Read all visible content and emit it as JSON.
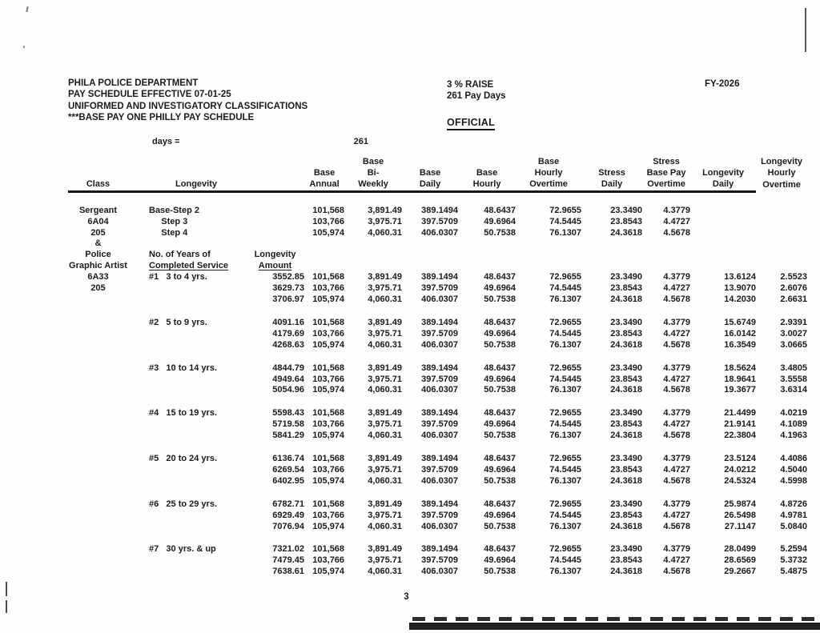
{
  "page": {
    "title_lines": [
      "PHILA POLICE DEPARTMENT",
      "PAY SCHEDULE EFFECTIVE 07-01-25",
      "UNIFORMED AND INVESTIGATORY CLASSIFICATIONS",
      "***BASE PAY ONE PHILLY PAY SCHEDULE"
    ],
    "raise_note": "3 % RAISE",
    "pay_days_note": "261 Pay Days",
    "official_label": "OFFICIAL",
    "fiscal_year": "FY-2026",
    "days_label": "days =",
    "days_value": "261",
    "page_number": "3"
  },
  "table": {
    "column_headers": [
      [
        "",
        "",
        "Class"
      ],
      [
        "",
        "",
        "Longevity"
      ],
      [
        "",
        "",
        ""
      ],
      [
        "",
        "Base",
        "Annual"
      ],
      [
        "Base",
        "Bi-",
        "Weekly"
      ],
      [
        "",
        "Base",
        "Daily"
      ],
      [
        "",
        "Base",
        "Hourly"
      ],
      [
        "Base",
        "Hourly",
        "Overtime"
      ],
      [
        "",
        "Stress",
        "Daily"
      ],
      [
        "Stress",
        "Base Pay",
        "Overtime"
      ],
      [
        "",
        "Longevity",
        "Daily"
      ],
      [
        "Longevity",
        "Hourly",
        "Overtime"
      ]
    ],
    "rows": [
      {
        "cells": [
          "Sergeant",
          "Base-Step 2",
          "",
          "101,568",
          "3,891.49",
          "389.1494",
          "48.6437",
          "72.9655",
          "23.3490",
          "4.3779",
          "",
          ""
        ]
      },
      {
        "cells": [
          "6A04",
          "     Step 3",
          "",
          "103,766",
          "3,975.71",
          "397.5709",
          "49.6964",
          "74.5445",
          "23.8543",
          "4.4727",
          "",
          ""
        ]
      },
      {
        "cells": [
          "205",
          "     Step 4",
          "",
          "105,974",
          "4,060.31",
          "406.0307",
          "50.7538",
          "76.1307",
          "24.3618",
          "4.5678",
          "",
          ""
        ]
      },
      {
        "cells": [
          "&",
          "",
          "",
          "",
          "",
          "",
          "",
          "",
          "",
          "",
          "",
          ""
        ]
      },
      {
        "label_row": true,
        "cells": [
          "Police",
          "No. of Years of",
          "Longevity",
          "",
          "",
          "",
          "",
          "",
          "",
          "",
          "",
          ""
        ]
      },
      {
        "label_row": true,
        "u": [
          1,
          2
        ],
        "cells": [
          "Graphic Artist",
          "Completed Service",
          "Amount",
          "",
          "",
          "",
          "",
          "",
          "",
          "",
          "",
          ""
        ]
      },
      {
        "cells": [
          "6A33",
          "#1   3 to 4 yrs.",
          "3552.85",
          "101,568",
          "3,891.49",
          "389.1494",
          "48.6437",
          "72.9655",
          "23.3490",
          "4.3779",
          "13.6124",
          "2.5523"
        ]
      },
      {
        "cells": [
          "205",
          "",
          "3629.73",
          "103,766",
          "3,975.71",
          "397.5709",
          "49.6964",
          "74.5445",
          "23.8543",
          "4.4727",
          "13.9070",
          "2.6076"
        ]
      },
      {
        "cells": [
          "",
          "",
          "3706.97",
          "105,974",
          "4,060.31",
          "406.0307",
          "50.7538",
          "76.1307",
          "24.3618",
          "4.5678",
          "14.2030",
          "2.6631"
        ]
      },
      {
        "gap": true,
        "cells": [
          "",
          "#2   5 to 9 yrs.",
          "4091.16",
          "101,568",
          "3,891.49",
          "389.1494",
          "48.6437",
          "72.9655",
          "23.3490",
          "4.3779",
          "15.6749",
          "2.9391"
        ]
      },
      {
        "cells": [
          "",
          "",
          "4179.69",
          "103,766",
          "3,975.71",
          "397.5709",
          "49.6964",
          "74.5445",
          "23.8543",
          "4.4727",
          "16.0142",
          "3.0027"
        ]
      },
      {
        "cells": [
          "",
          "",
          "4268.63",
          "105,974",
          "4,060.31",
          "406.0307",
          "50.7538",
          "76.1307",
          "24.3618",
          "4.5678",
          "16.3549",
          "3.0665"
        ]
      },
      {
        "gap": true,
        "cells": [
          "",
          "#3   10 to 14 yrs.",
          "4844.79",
          "101,568",
          "3,891.49",
          "389.1494",
          "48.6437",
          "72.9655",
          "23.3490",
          "4.3779",
          "18.5624",
          "3.4805"
        ]
      },
      {
        "cells": [
          "",
          "",
          "4949.64",
          "103,766",
          "3,975.71",
          "397.5709",
          "49.6964",
          "74.5445",
          "23.8543",
          "4.4727",
          "18.9641",
          "3.5558"
        ]
      },
      {
        "cells": [
          "",
          "",
          "5054.96",
          "105,974",
          "4,060.31",
          "406.0307",
          "50.7538",
          "76.1307",
          "24.3618",
          "4.5678",
          "19.3677",
          "3.6314"
        ]
      },
      {
        "gap": true,
        "cells": [
          "",
          "#4   15 to 19 yrs.",
          "5598.43",
          "101,568",
          "3,891.49",
          "389.1494",
          "48.6437",
          "72.9655",
          "23.3490",
          "4.3779",
          "21.4499",
          "4.0219"
        ]
      },
      {
        "cells": [
          "",
          "",
          "5719.58",
          "103,766",
          "3,975.71",
          "397.5709",
          "49.6964",
          "74.5445",
          "23.8543",
          "4.4727",
          "21.9141",
          "4.1089"
        ]
      },
      {
        "cells": [
          "",
          "",
          "5841.29",
          "105,974",
          "4,060.31",
          "406.0307",
          "50.7538",
          "76.1307",
          "24.3618",
          "4.5678",
          "22.3804",
          "4.1963"
        ]
      },
      {
        "gap": true,
        "cells": [
          "",
          "#5   20 to 24 yrs.",
          "6136.74",
          "101,568",
          "3,891.49",
          "389.1494",
          "48.6437",
          "72.9655",
          "23.3490",
          "4.3779",
          "23.5124",
          "4.4086"
        ]
      },
      {
        "cells": [
          "",
          "",
          "6269.54",
          "103,766",
          "3,975.71",
          "397.5709",
          "49.6964",
          "74.5445",
          "23.8543",
          "4.4727",
          "24.0212",
          "4.5040"
        ]
      },
      {
        "cells": [
          "",
          "",
          "6402.95",
          "105,974",
          "4,060.31",
          "406.0307",
          "50.7538",
          "76.1307",
          "24.3618",
          "4.5678",
          "24.5324",
          "4.5998"
        ]
      },
      {
        "gap": true,
        "cells": [
          "",
          "#6   25 to 29 yrs.",
          "6782.71",
          "101,568",
          "3,891.49",
          "389.1494",
          "48.6437",
          "72.9655",
          "23.3490",
          "4.3779",
          "25.9874",
          "4.8726"
        ]
      },
      {
        "cells": [
          "",
          "",
          "6929.49",
          "103,766",
          "3,975.71",
          "397.5709",
          "49.6964",
          "74.5445",
          "23.8543",
          "4.4727",
          "26.5498",
          "4.9781"
        ]
      },
      {
        "cells": [
          "",
          "",
          "7076.94",
          "105,974",
          "4,060.31",
          "406.0307",
          "50.7538",
          "76.1307",
          "24.3618",
          "4.5678",
          "27.1147",
          "5.0840"
        ]
      },
      {
        "gap": true,
        "cells": [
          "",
          "#7   30 yrs. & up",
          "7321.02",
          "101,568",
          "3,891.49",
          "389.1494",
          "48.6437",
          "72.9655",
          "23.3490",
          "4.3779",
          "28.0499",
          "5.2594"
        ]
      },
      {
        "cells": [
          "",
          "",
          "7479.45",
          "103,766",
          "3,975.71",
          "397.5709",
          "49.6964",
          "74.5445",
          "23.8543",
          "4.4727",
          "28.6569",
          "5.3732"
        ]
      },
      {
        "cells": [
          "",
          "",
          "7638.61",
          "105,974",
          "4,060.31",
          "406.0307",
          "50.7538",
          "76.1307",
          "24.3618",
          "4.5678",
          "29.2667",
          "5.4875"
        ]
      }
    ]
  }
}
